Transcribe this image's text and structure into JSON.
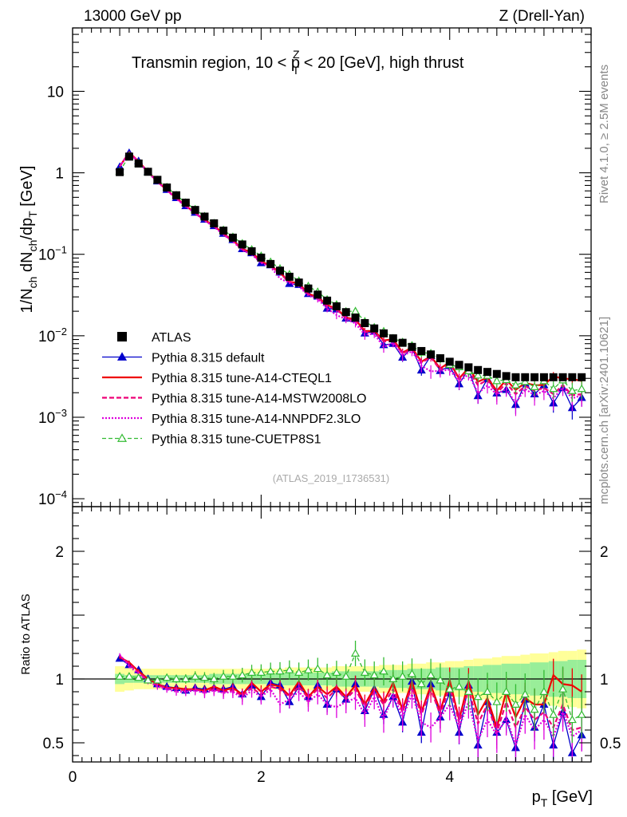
{
  "header": {
    "energy_label": "13000 GeV pp",
    "process_label": "Z (Drell-Yan)",
    "rivet_label": "Rivet 4.1.0, ≥ 2.5M events",
    "mcplots_label": "mcplots.cern.ch [arXiv:2401.10621]"
  },
  "chart_data": [
    {
      "type": "line",
      "title": "Transmin region, 10 < p_T^Z < 20 [GeV], high thrust",
      "title_parts": {
        "before": "Transmin region, 10 < p",
        "sup": "Z",
        "sub": "T",
        "after": " < 20 [GeV], high thrust"
      },
      "ylabel_parts": [
        "1/N",
        "ch",
        " dN",
        "ch",
        "/dp",
        "T",
        " [GeV]"
      ],
      "yscale": "log",
      "ylim": [
        8e-05,
        60
      ],
      "xlim": [
        0,
        5.5
      ],
      "y_ticks": [
        {
          "value": 10,
          "label": "10"
        },
        {
          "value": 1,
          "label": "1"
        },
        {
          "value": 0.1,
          "base": "10",
          "exp": "−1"
        },
        {
          "value": 0.01,
          "base": "10",
          "exp": "−2"
        },
        {
          "value": 0.001,
          "base": "10",
          "exp": "−3"
        },
        {
          "value": 0.0001,
          "base": "10",
          "exp": "−4"
        }
      ],
      "watermark": "(ATLAS_2019_I1736531)",
      "legend_position": "lower-left",
      "x": [
        0.5,
        0.6,
        0.7,
        0.8,
        0.9,
        1.0,
        1.1,
        1.2,
        1.3,
        1.4,
        1.5,
        1.6,
        1.7,
        1.8,
        1.9,
        2.0,
        2.1,
        2.2,
        2.3,
        2.4,
        2.5,
        2.6,
        2.7,
        2.8,
        2.9,
        3.0,
        3.1,
        3.2,
        3.3,
        3.4,
        3.5,
        3.6,
        3.7,
        3.8,
        3.9,
        4.0,
        4.1,
        4.2,
        4.3,
        4.4,
        4.5,
        4.6,
        4.7,
        4.8,
        4.9,
        5.0,
        5.1,
        5.2,
        5.3,
        5.4
      ],
      "atlas": [
        1.02,
        1.58,
        1.3,
        1.03,
        0.82,
        0.66,
        0.53,
        0.43,
        0.35,
        0.29,
        0.24,
        0.195,
        0.16,
        0.132,
        0.109,
        0.091,
        0.076,
        0.063,
        0.053,
        0.045,
        0.038,
        0.032,
        0.027,
        0.023,
        0.0195,
        0.0167,
        0.0143,
        0.0123,
        0.0107,
        0.0093,
        0.0082,
        0.0073,
        0.0065,
        0.0059,
        0.0053,
        0.0048,
        0.0044,
        0.0041,
        0.0038,
        0.0036,
        0.0034,
        0.0032,
        0.0031,
        0.0031,
        0.0031,
        0.0031,
        0.0031,
        0.0031,
        0.0031,
        0.0031
      ],
      "series": [
        {
          "name": "ATLAS",
          "style": "data",
          "color": "#000000"
        },
        {
          "name": "Pythia 8.315 default",
          "style": "line-marker",
          "color": "#0000cc",
          "marker": "triangle-filled",
          "dash": "",
          "ratio": [
            1.16,
            1.11,
            1.07,
            1.0,
            0.96,
            0.94,
            0.93,
            0.91,
            0.93,
            0.92,
            0.93,
            0.92,
            0.94,
            0.88,
            0.95,
            0.86,
            0.97,
            0.95,
            0.82,
            0.94,
            0.86,
            0.95,
            0.8,
            0.92,
            0.84,
            0.96,
            0.75,
            0.92,
            0.72,
            0.86,
            0.66,
            0.98,
            0.58,
            0.96,
            0.7,
            0.89,
            0.58,
            0.95,
            0.48,
            0.82,
            0.58,
            0.68,
            0.46,
            0.84,
            0.62,
            0.8,
            0.48,
            0.74,
            0.42,
            0.56
          ]
        },
        {
          "name": "Pythia 8.315 tune-A14-CTEQL1",
          "style": "line",
          "color": "#ee0000",
          "dash": "",
          "ratio": [
            1.17,
            1.13,
            1.06,
            1.0,
            0.96,
            0.93,
            0.93,
            0.92,
            0.92,
            0.91,
            0.94,
            0.91,
            0.93,
            0.88,
            0.97,
            0.9,
            0.96,
            0.94,
            0.87,
            0.98,
            0.86,
            0.94,
            0.88,
            0.94,
            0.86,
            0.95,
            0.8,
            0.93,
            0.82,
            0.97,
            0.76,
            0.98,
            0.74,
            0.95,
            0.75,
            0.99,
            0.68,
            0.98,
            0.72,
            0.85,
            0.62,
            0.9,
            0.7,
            0.85,
            0.8,
            0.8,
            1.03,
            0.96,
            0.95,
            0.9
          ]
        },
        {
          "name": "Pythia 8.315 tune-A14-MSTW2008LO",
          "style": "line",
          "color": "#ee0077",
          "dash": "6,3",
          "ratio": [
            1.18,
            1.12,
            1.05,
            0.99,
            0.95,
            0.93,
            0.92,
            0.91,
            0.92,
            0.9,
            0.92,
            0.9,
            0.91,
            0.87,
            0.93,
            0.88,
            0.94,
            0.92,
            0.86,
            0.94,
            0.85,
            0.92,
            0.85,
            0.92,
            0.84,
            0.92,
            0.78,
            0.9,
            0.8,
            0.92,
            0.74,
            0.94,
            0.72,
            0.92,
            0.72,
            0.94,
            0.66,
            0.92,
            0.65,
            0.8,
            0.58,
            0.82,
            0.62,
            0.78,
            0.68,
            0.74,
            0.62,
            0.8,
            0.6,
            0.62
          ]
        },
        {
          "name": "Pythia 8.315 tune-A14-NNPDF2.3LO",
          "style": "line",
          "color": "#dd00dd",
          "dash": "2,2",
          "ratio": [
            1.19,
            1.1,
            1.04,
            0.98,
            0.94,
            0.92,
            0.9,
            0.9,
            0.91,
            0.89,
            0.91,
            0.89,
            0.9,
            0.85,
            0.91,
            0.86,
            0.92,
            0.8,
            0.84,
            0.9,
            0.82,
            0.88,
            0.8,
            0.78,
            0.82,
            0.85,
            0.72,
            0.86,
            0.68,
            0.88,
            0.7,
            0.88,
            0.66,
            0.62,
            0.7,
            0.8,
            0.62,
            0.82,
            0.52,
            0.68,
            0.56,
            0.7,
            0.48,
            0.72,
            0.6,
            0.68,
            0.55,
            0.75,
            0.55,
            0.6
          ]
        },
        {
          "name": "Pythia 8.315 tune-CUETP8S1",
          "style": "line-marker",
          "color": "#33bb33",
          "marker": "triangle-open",
          "dash": "5,3",
          "ratio": [
            1.02,
            1.02,
            1.01,
            0.99,
            0.99,
            1.01,
            1.0,
            1.0,
            1.02,
            1.01,
            1.0,
            1.02,
            1.02,
            1.03,
            1.05,
            1.05,
            1.06,
            1.06,
            1.07,
            1.05,
            1.07,
            1.08,
            1.03,
            1.05,
            1.02,
            1.2,
            1.05,
            1.03,
            1.06,
            1.0,
            1.02,
            1.04,
            0.96,
            1.03,
            0.99,
            0.92,
            0.94,
            0.9,
            0.86,
            0.9,
            0.82,
            0.9,
            0.8,
            0.88,
            0.76,
            0.9,
            0.72,
            0.92,
            0.68,
            0.72
          ]
        }
      ]
    },
    {
      "type": "line",
      "ylabel": "Ratio to ATLAS",
      "xlabel_parts": {
        "main": "p",
        "sub": "T",
        "after": " [GeV]"
      },
      "ylim": [
        0.35,
        2.35
      ],
      "xlim": [
        0,
        5.5
      ],
      "x_ticks": [
        {
          "value": 0,
          "label": "0"
        },
        {
          "value": 2,
          "label": "2"
        },
        {
          "value": 4,
          "label": "4"
        }
      ],
      "y_ticks": [
        {
          "value": 2,
          "label": "2"
        },
        {
          "value": 1,
          "label": "1"
        },
        {
          "value": 0.5,
          "label": "0.5"
        }
      ],
      "reference_line": 1,
      "band_stat_frac": [
        0.04,
        0.03,
        0.03,
        0.03,
        0.03,
        0.03,
        0.03,
        0.03,
        0.03,
        0.03,
        0.04,
        0.04,
        0.04,
        0.04,
        0.04,
        0.04,
        0.04,
        0.05,
        0.05,
        0.05,
        0.05,
        0.05,
        0.05,
        0.06,
        0.06,
        0.06,
        0.06,
        0.06,
        0.07,
        0.07,
        0.07,
        0.08,
        0.08,
        0.08,
        0.09,
        0.09,
        0.09,
        0.1,
        0.1,
        0.11,
        0.11,
        0.12,
        0.12,
        0.12,
        0.13,
        0.13,
        0.14,
        0.14,
        0.15,
        0.15
      ],
      "band_tot_frac": [
        0.1,
        0.09,
        0.08,
        0.08,
        0.08,
        0.08,
        0.08,
        0.08,
        0.08,
        0.08,
        0.08,
        0.08,
        0.08,
        0.08,
        0.08,
        0.08,
        0.08,
        0.08,
        0.09,
        0.09,
        0.09,
        0.09,
        0.09,
        0.1,
        0.1,
        0.1,
        0.1,
        0.1,
        0.11,
        0.11,
        0.11,
        0.12,
        0.12,
        0.13,
        0.13,
        0.14,
        0.14,
        0.15,
        0.16,
        0.16,
        0.17,
        0.18,
        0.18,
        0.19,
        0.2,
        0.2,
        0.21,
        0.22,
        0.22,
        0.23
      ]
    }
  ]
}
